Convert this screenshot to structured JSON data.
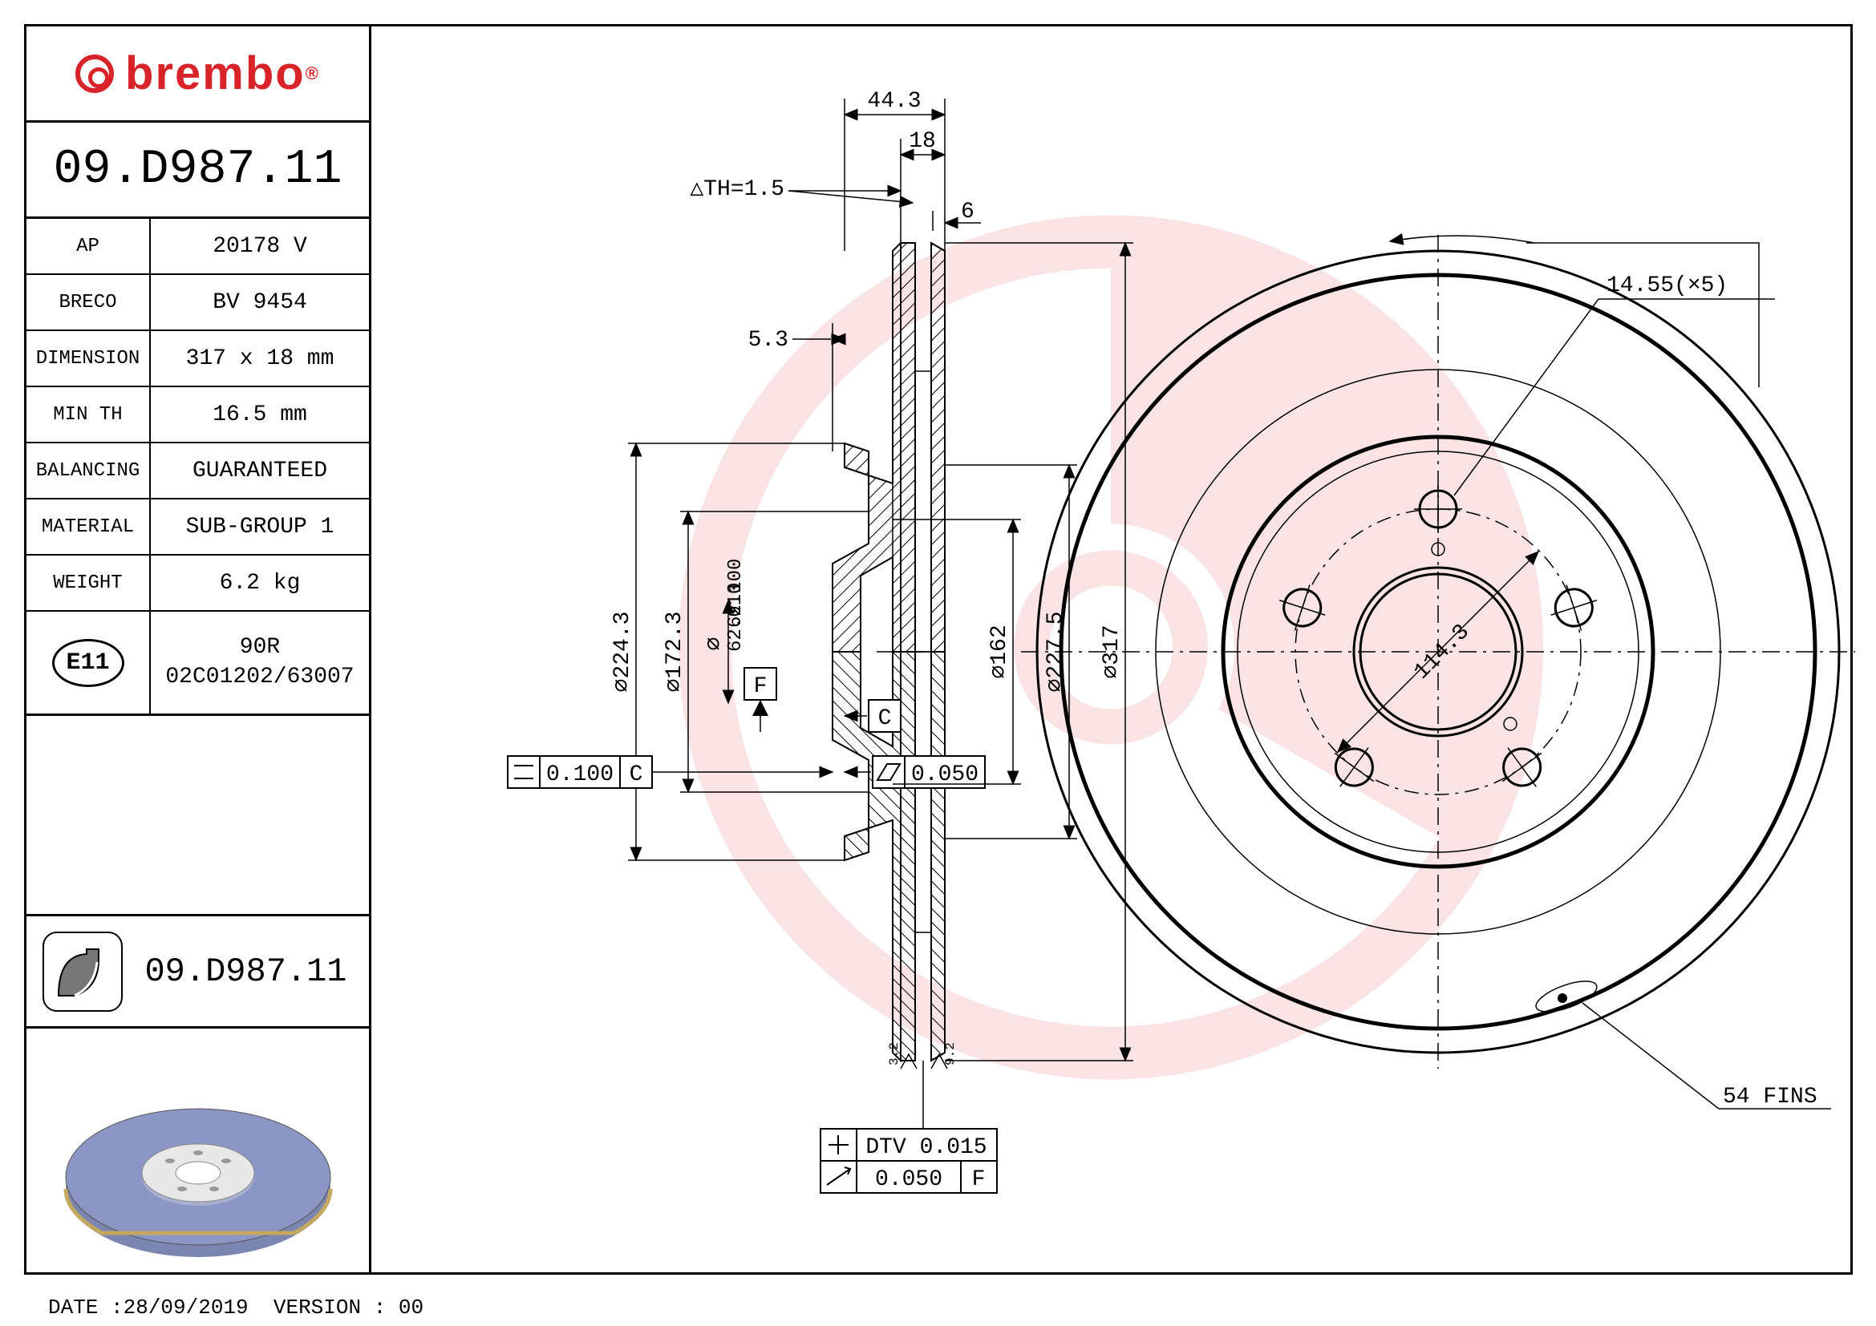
{
  "brand": "brembo",
  "brand_color": "#d8232a",
  "part_number": "09.D987.11",
  "specs": [
    {
      "label": "AP",
      "value": "20178 V"
    },
    {
      "label": "BRECO",
      "value": "BV 9454"
    },
    {
      "label": "DIMENSION",
      "value": "317 x 18 mm"
    },
    {
      "label": "MIN TH",
      "value": "16.5 mm"
    },
    {
      "label": "BALANCING",
      "value": "GUARANTEED"
    },
    {
      "label": "MATERIAL",
      "value": "SUB-GROUP 1"
    },
    {
      "label": "WEIGHT",
      "value": "6.2 kg"
    }
  ],
  "cert": {
    "mark": "E11",
    "code_line1": "90R",
    "code_line2": "02C01202/63007"
  },
  "footer": {
    "date": "28/09/2019",
    "version": "00"
  },
  "cross_section": {
    "dims": {
      "overall_width": "44.3",
      "disc_thickness": "18",
      "th_tolerance": "△TH=1.5",
      "chamfer": "6",
      "hat_offset": "5.3",
      "d_outer_hat": "⌀224.3",
      "d_inner_hat": "⌀172.3",
      "d_bore_upper": "62.100",
      "d_bore_lower": "62.010",
      "d_swept": "⌀162",
      "d_pitch": "⌀227.5",
      "d_outer": "⌀317",
      "parallelism": "0.100",
      "flatness": "0.050",
      "dtv": "DTV 0.015",
      "runout": "0.050",
      "datum_c": "C",
      "datum_f": "F",
      "ra1": "3.2",
      "ra2": "9.2"
    }
  },
  "front_view": {
    "bolt_hole": "14.55(×5)",
    "pcd": "114.3",
    "fins": "54 FINS"
  },
  "colors": {
    "line": "#000000",
    "render_disc": "#8b96c4",
    "render_edge": "#c4a860",
    "render_hub": "#e8e8e8"
  }
}
